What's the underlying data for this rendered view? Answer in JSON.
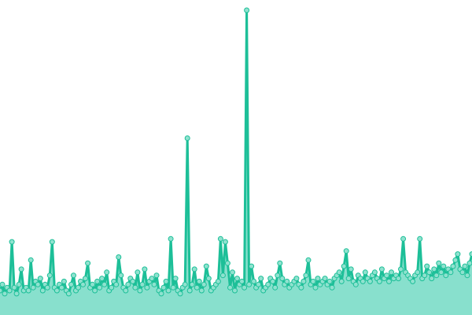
{
  "chart_data": {
    "type": "area",
    "title": "",
    "xlabel": "",
    "ylabel": "",
    "ylim": [
      0,
      100
    ],
    "grid": false,
    "legend": "none",
    "colors": {
      "line": "#1dbf98",
      "fill": "#88e0cd",
      "marker_fill": "#8fe2cf",
      "marker_stroke": "#1dbf98"
    },
    "values": [
      8,
      10,
      7,
      9,
      8,
      24,
      9,
      7,
      10,
      15,
      8,
      9,
      8,
      18,
      9,
      11,
      10,
      12,
      8,
      10,
      9,
      13,
      24,
      9,
      8,
      10,
      9,
      11,
      8,
      7,
      10,
      13,
      8,
      9,
      11,
      10,
      12,
      17,
      9,
      10,
      8,
      11,
      9,
      12,
      10,
      14,
      8,
      9,
      11,
      10,
      19,
      13,
      9,
      8,
      10,
      12,
      11,
      9,
      14,
      8,
      10,
      15,
      9,
      11,
      12,
      10,
      13,
      8,
      7,
      9,
      11,
      8,
      25,
      9,
      12,
      8,
      7,
      9,
      10,
      58,
      8,
      10,
      15,
      9,
      11,
      8,
      10,
      16,
      12,
      8,
      9,
      10,
      11,
      25,
      13,
      24,
      17,
      9,
      14,
      8,
      12,
      10,
      11,
      9,
      100,
      10,
      16,
      11,
      9,
      10,
      12,
      8,
      9,
      10,
      12,
      11,
      9,
      13,
      17,
      12,
      10,
      11,
      9,
      10,
      11,
      12,
      10,
      9,
      11,
      13,
      18,
      10,
      11,
      9,
      12,
      10,
      11,
      12,
      10,
      11,
      9,
      12,
      13,
      14,
      11,
      16,
      21,
      12,
      15,
      11,
      10,
      13,
      12,
      11,
      14,
      12,
      11,
      13,
      14,
      12,
      11,
      15,
      12,
      13,
      11,
      14,
      12,
      13,
      12,
      15,
      25,
      14,
      13,
      12,
      11,
      13,
      14,
      25,
      12,
      13,
      16,
      14,
      12,
      15,
      13,
      17,
      14,
      16,
      13,
      15,
      14,
      16,
      18,
      20,
      15,
      14,
      16,
      13,
      17,
      20
    ]
  }
}
